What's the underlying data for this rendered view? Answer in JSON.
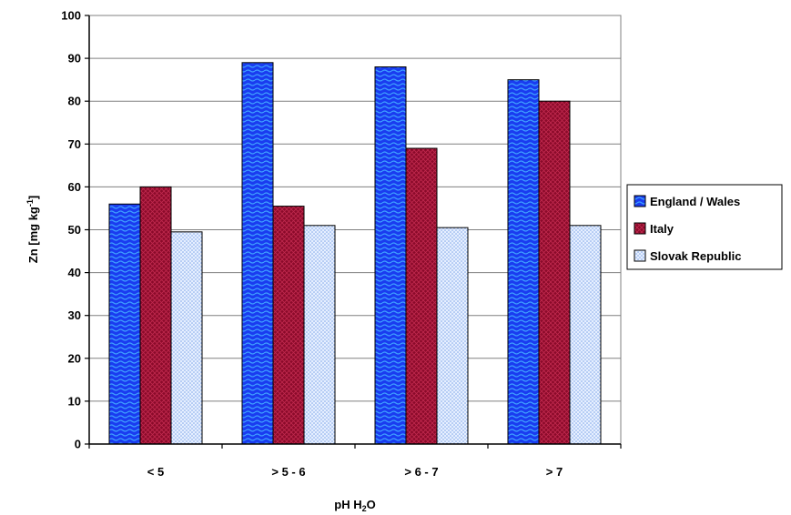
{
  "chart_data": {
    "type": "bar",
    "title": "",
    "xlabel_main": "pH H",
    "xlabel_sub": "2",
    "xlabel_tail": "O",
    "ylabel_main": "Zn [mg kg",
    "ylabel_sup": "-1",
    "ylabel_tail": "]",
    "ylim": [
      0,
      100
    ],
    "yticks": [
      0,
      10,
      20,
      30,
      40,
      50,
      60,
      70,
      80,
      90,
      100
    ],
    "grid": true,
    "legend_position": "right",
    "categories": [
      "< 5",
      "> 5 - 6",
      "> 6 - 7",
      "> 7"
    ],
    "series": [
      {
        "name": "England / Wales",
        "values": [
          56,
          89,
          88,
          85
        ],
        "color": "#1a3cf0",
        "pattern": "hatch"
      },
      {
        "name": "Italy",
        "values": [
          60,
          55.5,
          69,
          80
        ],
        "color": "#8b0a2a",
        "pattern": "cross"
      },
      {
        "name": "Slovak Republic",
        "values": [
          49.5,
          51,
          50.5,
          51
        ],
        "color": "#c8dcff",
        "pattern": "dots"
      }
    ]
  }
}
